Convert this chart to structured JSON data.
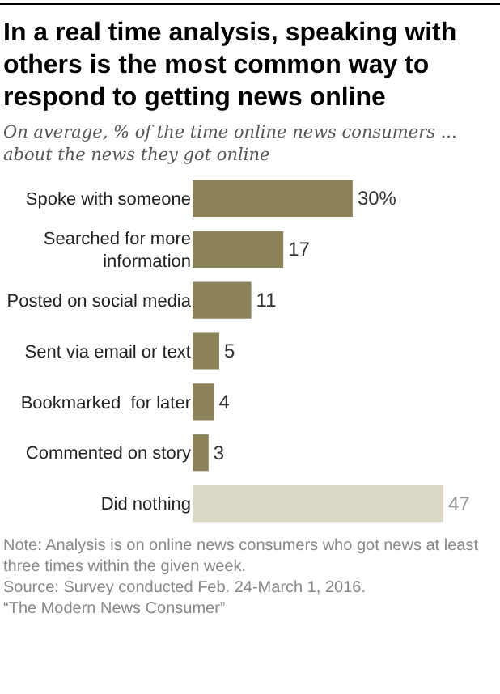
{
  "chart_data": {
    "type": "bar",
    "orientation": "horizontal",
    "title": "In a real time analysis, speaking with others is the most common way to respond to getting news online",
    "subtitle": "On average, % of the time online news consumers ... about the news they got online",
    "categories": [
      "Spoke with someone",
      "Searched for more information",
      "Posted on social media",
      "Sent via email or text",
      "Bookmarked  for later",
      "Commented on story",
      "Did nothing"
    ],
    "values": [
      30,
      17,
      11,
      5,
      4,
      3,
      47
    ],
    "colors": [
      "#8c8259",
      "#8c8259",
      "#8c8259",
      "#8c8259",
      "#8c8259",
      "#8c8259",
      "#dcd8c6"
    ],
    "value_labels": [
      "30%",
      "17",
      "11",
      "5",
      "4",
      "3",
      "47"
    ],
    "annotations": [
      "Note: Analysis is on online news consumers who got news at least three times within the given week.",
      "Source: Survey conducted Feb. 24-March 1, 2016.",
      "“The Modern News Consumer”"
    ]
  }
}
